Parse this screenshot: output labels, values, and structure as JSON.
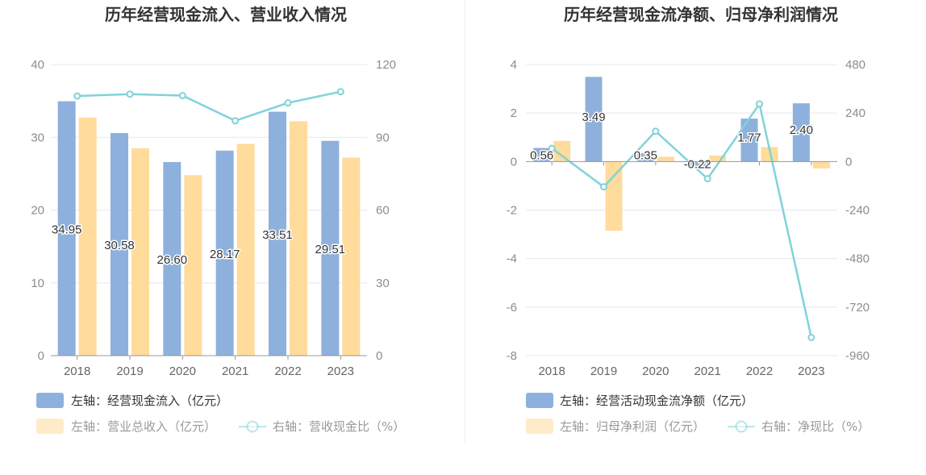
{
  "colors": {
    "bar_blue": "#8eb0dc",
    "bar_orange": "#ffdb9c",
    "line_cyan": "#80d3d9",
    "grid": "#e6e8ee",
    "axis": "#999999",
    "divider": "#f0f0f0"
  },
  "chart_data": [
    {
      "type": "bar+line",
      "title": "历年经营现金流入、营业收入情况",
      "categories": [
        "2018",
        "2019",
        "2020",
        "2021",
        "2022",
        "2023"
      ],
      "y_left": {
        "ticks": [
          "0",
          "10",
          "20",
          "30",
          "40"
        ],
        "range": [
          0,
          40
        ]
      },
      "y_right": {
        "ticks": [
          "0",
          "30",
          "60",
          "90",
          "120"
        ],
        "range": [
          0,
          120
        ]
      },
      "series": [
        {
          "name": "左轴：经营现金流入（亿元）",
          "type": "bar",
          "axis": "left",
          "values": [
            34.95,
            30.58,
            26.6,
            28.17,
            33.51,
            29.51
          ],
          "labels": [
            "34.95",
            "30.58",
            "26.60",
            "28.17",
            "33.51",
            "29.51"
          ]
        },
        {
          "name": "左轴：营业总收入（亿元）",
          "type": "bar",
          "axis": "left",
          "values": [
            32.7,
            28.5,
            24.8,
            29.1,
            32.2,
            27.2
          ]
        },
        {
          "name": "右轴：营收现金比（%）",
          "type": "line",
          "axis": "right",
          "values": [
            107,
            107.8,
            107.2,
            96.8,
            104.2,
            108.8
          ]
        }
      ]
    },
    {
      "type": "bar+line",
      "title": "历年经营现金流净额、归母净利润情况",
      "categories": [
        "2018",
        "2019",
        "2020",
        "2021",
        "2022",
        "2023"
      ],
      "y_left": {
        "ticks": [
          "-8",
          "-6",
          "-4",
          "-2",
          "0",
          "2",
          "4"
        ],
        "range": [
          -8,
          4
        ]
      },
      "y_right": {
        "ticks": [
          "-960",
          "-720",
          "-480",
          "-240",
          "0",
          "240",
          "480"
        ],
        "range": [
          -960,
          480
        ]
      },
      "series": [
        {
          "name": "左轴：经营活动现金流净额（亿元）",
          "type": "bar",
          "axis": "left",
          "values": [
            0.56,
            3.49,
            0.35,
            -0.22,
            1.77,
            2.4
          ],
          "labels": [
            "0.56",
            "3.49",
            "0.35",
            "-0.22",
            "1.77",
            "2.40"
          ]
        },
        {
          "name": "左轴：归母净利润（亿元）",
          "type": "bar",
          "axis": "left",
          "values": [
            0.85,
            -2.85,
            0.2,
            0.25,
            0.6,
            -0.28
          ]
        },
        {
          "name": "右轴：净现比（%）",
          "type": "line",
          "axis": "right",
          "values": [
            65,
            -125,
            150,
            -85,
            285,
            -870
          ]
        }
      ]
    }
  ]
}
